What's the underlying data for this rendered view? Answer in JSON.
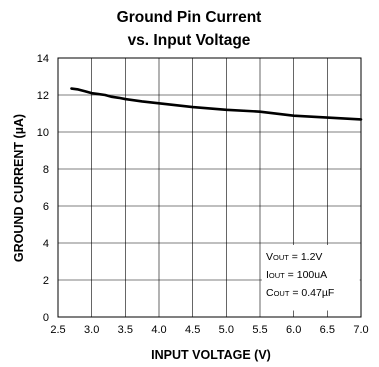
{
  "chart_data": {
    "type": "line",
    "title": [
      "Ground Pin Current",
      "vs. Input Voltage"
    ],
    "xlabel": "INPUT VOLTAGE (V)",
    "ylabel": "GROUND CURRENT (µA)",
    "xlim": [
      2.5,
      7.0
    ],
    "ylim": [
      0,
      14
    ],
    "xticks": [
      "2.5",
      "3.0",
      "3.5",
      "4.0",
      "4.5",
      "5.0",
      "5.5",
      "6.0",
      "6.5",
      "7.0"
    ],
    "yticks": [
      "0",
      "2",
      "4",
      "6",
      "8",
      "10",
      "12",
      "14"
    ],
    "grid": true,
    "series": [
      {
        "x": [
          2.7,
          2.8,
          2.9,
          3.0,
          3.1,
          3.2,
          3.3,
          3.4,
          3.5,
          3.75,
          4.0,
          4.5,
          5.0,
          5.5,
          6.0,
          6.5,
          7.0
        ],
        "y": [
          12.35,
          12.3,
          12.2,
          12.1,
          12.05,
          12.0,
          11.9,
          11.85,
          11.78,
          11.65,
          11.55,
          11.35,
          11.2,
          11.1,
          10.88,
          10.78,
          10.68
        ]
      }
    ],
    "annotation": [
      {
        "main": "V",
        "sub": "OUT",
        "rest": " = 1.2V"
      },
      {
        "main": "I",
        "sub": "OUT",
        "rest": " = 100uA"
      },
      {
        "main": "C",
        "sub": "OUT",
        "rest": " = 0.47µF"
      }
    ]
  }
}
